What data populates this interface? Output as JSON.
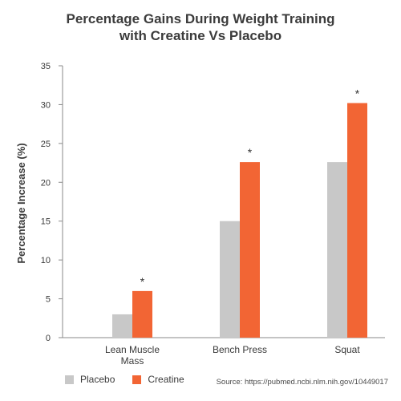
{
  "chart_data": {
    "type": "bar",
    "title_lines": [
      "Percentage Gains During Weight Training",
      "with Creatine Vs Placebo"
    ],
    "ylabel": "Percentage Increase (%)",
    "xlabel": "",
    "ylim": [
      0,
      35
    ],
    "yticks": [
      0,
      5,
      10,
      15,
      20,
      25,
      30,
      35
    ],
    "categories": [
      [
        "Lean Muscle",
        "Mass"
      ],
      [
        "Bench Press"
      ],
      [
        "Squat"
      ]
    ],
    "series": [
      {
        "name": "Placebo",
        "color": "#c8c8c8",
        "values": [
          3,
          15,
          22.6
        ]
      },
      {
        "name": "Creatine",
        "color": "#f26534",
        "values": [
          6,
          22.6,
          30.2
        ]
      }
    ],
    "annotations": [
      "*",
      "*",
      "*"
    ],
    "grid": false,
    "legend_position": "bottom-left"
  },
  "source": "Source: https://pubmed.ncbi.nlm.nih.gov/10449017"
}
